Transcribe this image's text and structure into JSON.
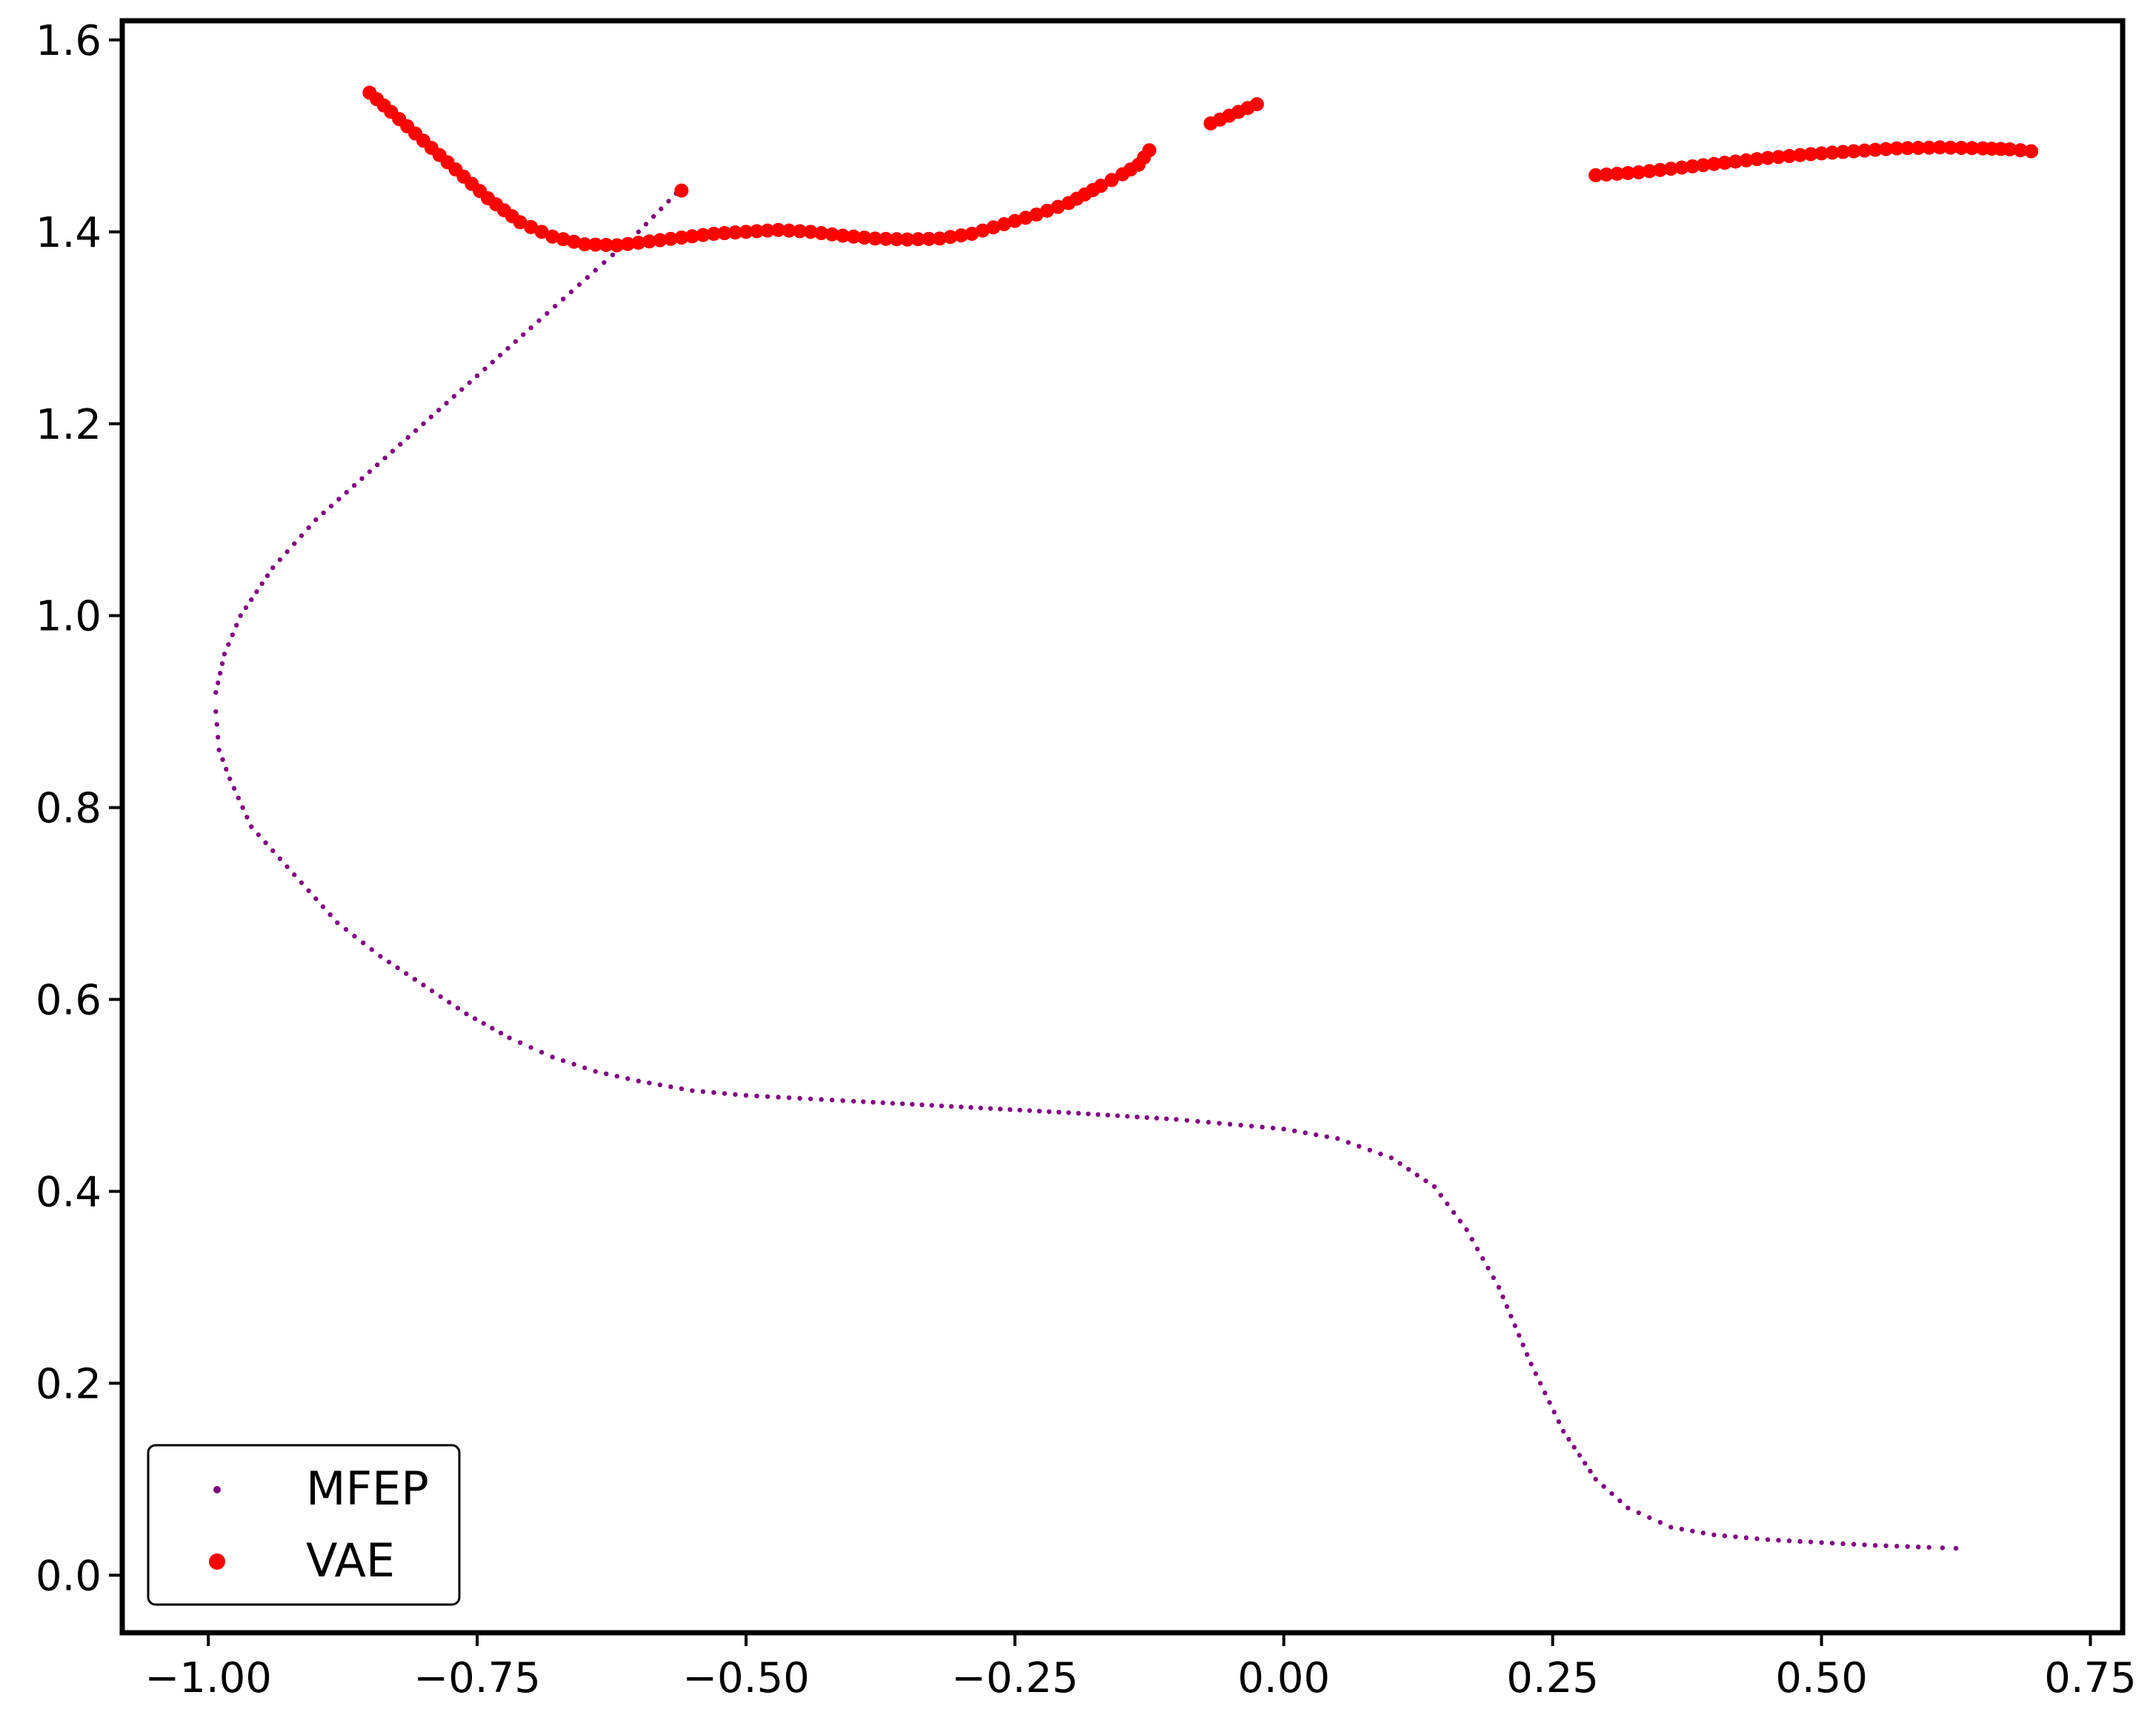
{
  "chart_data": {
    "type": "scatter",
    "title": "",
    "xlabel": "",
    "ylabel": "",
    "xlim": [
      -1.08,
      0.78
    ],
    "ylim": [
      -0.06,
      1.62
    ],
    "x_ticks": [
      {
        "value": -1.0,
        "label": "−1.00"
      },
      {
        "value": -0.75,
        "label": "−0.75"
      },
      {
        "value": -0.5,
        "label": "−0.50"
      },
      {
        "value": -0.25,
        "label": "−0.25"
      },
      {
        "value": 0.0,
        "label": "0.00"
      },
      {
        "value": 0.25,
        "label": "0.25"
      },
      {
        "value": 0.5,
        "label": "0.50"
      },
      {
        "value": 0.75,
        "label": "0.75"
      }
    ],
    "y_ticks": [
      {
        "value": 0.0,
        "label": "0.0"
      },
      {
        "value": 0.2,
        "label": "0.2"
      },
      {
        "value": 0.4,
        "label": "0.4"
      },
      {
        "value": 0.6,
        "label": "0.6"
      },
      {
        "value": 0.8,
        "label": "0.8"
      },
      {
        "value": 1.0,
        "label": "1.0"
      },
      {
        "value": 1.2,
        "label": "1.2"
      },
      {
        "value": 1.4,
        "label": "1.4"
      },
      {
        "value": 1.6,
        "label": "1.6"
      }
    ],
    "grid": false,
    "legend": {
      "placement": "bottom-left"
    },
    "series": [
      {
        "name": "MFEP",
        "color": "#800080",
        "marker": "small-dot",
        "points": [
          [
            -0.565,
            1.44
          ],
          [
            -0.6,
            1.4
          ],
          [
            -0.64,
            1.36
          ],
          [
            -0.7,
            1.3
          ],
          [
            -0.75,
            1.25
          ],
          [
            -0.8,
            1.2
          ],
          [
            -0.85,
            1.15
          ],
          [
            -0.9,
            1.1
          ],
          [
            -0.94,
            1.05
          ],
          [
            -0.97,
            1.0
          ],
          [
            -0.985,
            0.96
          ],
          [
            -0.993,
            0.92
          ],
          [
            -0.993,
            0.9
          ],
          [
            -0.99,
            0.86
          ],
          [
            -0.98,
            0.83
          ],
          [
            -0.96,
            0.78
          ],
          [
            -0.92,
            0.73
          ],
          [
            -0.88,
            0.68
          ],
          [
            -0.84,
            0.645
          ],
          [
            -0.8,
            0.615
          ],
          [
            -0.76,
            0.585
          ],
          [
            -0.72,
            0.56
          ],
          [
            -0.68,
            0.54
          ],
          [
            -0.64,
            0.525
          ],
          [
            -0.6,
            0.515
          ],
          [
            -0.55,
            0.505
          ],
          [
            -0.5,
            0.5
          ],
          [
            -0.45,
            0.497
          ],
          [
            -0.4,
            0.494
          ],
          [
            -0.3,
            0.488
          ],
          [
            -0.2,
            0.482
          ],
          [
            -0.1,
            0.475
          ],
          [
            -0.05,
            0.47
          ],
          [
            0.0,
            0.465
          ],
          [
            0.05,
            0.455
          ],
          [
            0.1,
            0.435
          ],
          [
            0.14,
            0.405
          ],
          [
            0.17,
            0.36
          ],
          [
            0.2,
            0.3
          ],
          [
            0.23,
            0.22
          ],
          [
            0.26,
            0.15
          ],
          [
            0.29,
            0.1
          ],
          [
            0.32,
            0.07
          ],
          [
            0.36,
            0.05
          ],
          [
            0.4,
            0.042
          ],
          [
            0.45,
            0.037
          ],
          [
            0.5,
            0.034
          ],
          [
            0.55,
            0.031
          ],
          [
            0.6,
            0.029
          ],
          [
            0.625,
            0.028
          ]
        ]
      },
      {
        "name": "VAE",
        "color": "#ff0000",
        "marker": "dot",
        "points": [
          [
            -0.85,
            1.545
          ],
          [
            -0.83,
            1.525
          ],
          [
            -0.8,
            1.495
          ],
          [
            -0.77,
            1.465
          ],
          [
            -0.74,
            1.435
          ],
          [
            -0.71,
            1.41
          ],
          [
            -0.68,
            1.395
          ],
          [
            -0.65,
            1.387
          ],
          [
            -0.62,
            1.386
          ],
          [
            -0.59,
            1.39
          ],
          [
            -0.56,
            1.394
          ],
          [
            -0.53,
            1.398
          ],
          [
            -0.5,
            1.4
          ],
          [
            -0.47,
            1.402
          ],
          [
            -0.44,
            1.4
          ],
          [
            -0.41,
            1.396
          ],
          [
            -0.38,
            1.393
          ],
          [
            -0.35,
            1.392
          ],
          [
            -0.32,
            1.393
          ],
          [
            -0.29,
            1.398
          ],
          [
            -0.26,
            1.408
          ],
          [
            -0.23,
            1.418
          ],
          [
            -0.2,
            1.43
          ],
          [
            -0.17,
            1.448
          ],
          [
            -0.15,
            1.46
          ],
          [
            -0.135,
            1.47
          ],
          [
            -0.125,
            1.485
          ],
          [
            -0.56,
            1.443
          ],
          [
            -0.068,
            1.513
          ],
          [
            -0.025,
            1.533
          ],
          [
            0.29,
            1.459
          ],
          [
            0.33,
            1.462
          ],
          [
            0.37,
            1.467
          ],
          [
            0.41,
            1.472
          ],
          [
            0.45,
            1.477
          ],
          [
            0.49,
            1.481
          ],
          [
            0.53,
            1.484
          ],
          [
            0.57,
            1.487
          ],
          [
            0.61,
            1.488
          ],
          [
            0.65,
            1.487
          ],
          [
            0.675,
            1.486
          ],
          [
            0.695,
            1.484
          ]
        ]
      }
    ]
  }
}
